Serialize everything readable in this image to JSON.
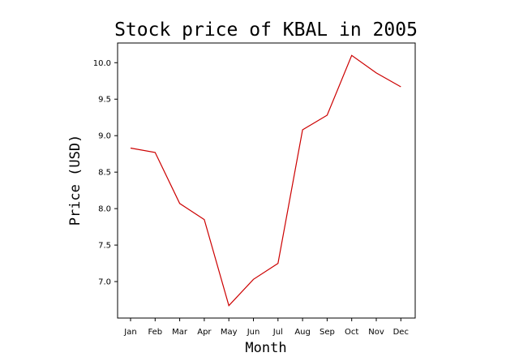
{
  "chart_data": {
    "type": "line",
    "title": "Stock price of KBAL in 2005",
    "xlabel": "Month",
    "ylabel": "Price (USD)",
    "categories": [
      "Jan",
      "Feb",
      "Mar",
      "Apr",
      "May",
      "Jun",
      "Jul",
      "Aug",
      "Sep",
      "Oct",
      "Nov",
      "Dec"
    ],
    "series": [
      {
        "values": [
          8.83,
          8.77,
          8.07,
          7.85,
          6.67,
          7.03,
          7.25,
          9.08,
          9.28,
          10.1,
          9.86,
          9.67
        ],
        "color": "#cc0000"
      }
    ],
    "yticks": [
      "7.0",
      "7.5",
      "8.0",
      "8.5",
      "9.0",
      "9.5",
      "10.0"
    ],
    "ylim": [
      6.5,
      10.27
    ],
    "grid": false,
    "legend": "none"
  }
}
